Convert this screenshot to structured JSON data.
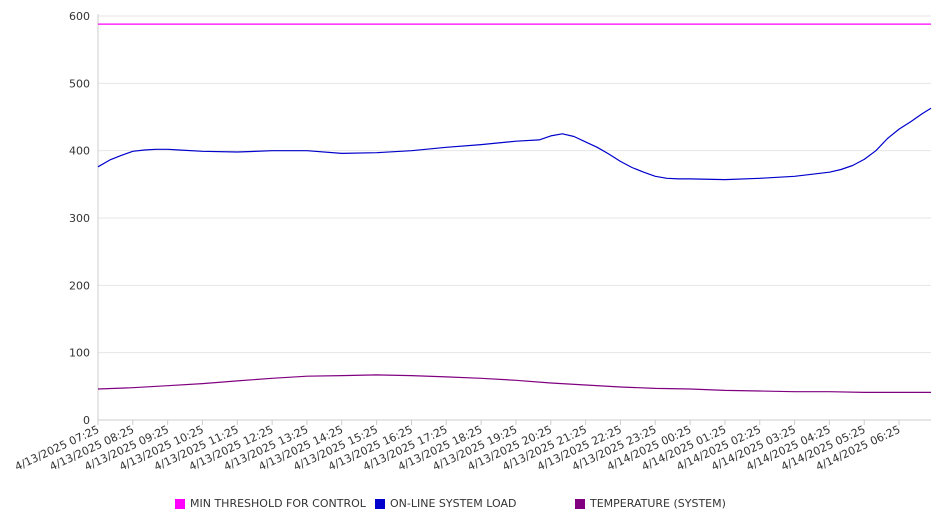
{
  "chart_data": {
    "type": "line",
    "title": "",
    "xlabel": "",
    "ylabel": "",
    "ylim": [
      0,
      600
    ],
    "yticks": [
      0,
      100,
      200,
      300,
      400,
      500,
      600
    ],
    "grid": "horizontal",
    "legend_position": "bottom",
    "x_tick_labels": [
      "4/13/2025 07:25",
      "4/13/2025 08:25",
      "4/13/2025 09:25",
      "4/13/2025 10:25",
      "4/13/2025 11:25",
      "4/13/2025 12:25",
      "4/13/2025 13:25",
      "4/13/2025 14:25",
      "4/13/2025 15:25",
      "4/13/2025 16:25",
      "4/13/2025 17:25",
      "4/13/2025 18:25",
      "4/13/2025 19:25",
      "4/13/2025 20:25",
      "4/13/2025 21:25",
      "4/13/2025 22:25",
      "4/13/2025 23:25",
      "4/14/2025 00:25",
      "4/14/2025 01:25",
      "4/14/2025 02:25",
      "4/14/2025 03:25",
      "4/14/2025 04:25",
      "4/14/2025 05:25",
      "4/14/2025 06:25"
    ],
    "x_start": "4/13/2025 07:25",
    "x_end": "4/14/2025 07:20",
    "sample_interval_minutes": 5,
    "series": [
      {
        "name": "MIN THRESHOLD FOR CONTROL",
        "color": "#ff00ff",
        "x": [
          "4/13/2025 07:25",
          "4/14/2025 07:20"
        ],
        "values": [
          588,
          588
        ]
      },
      {
        "name": "ON-LINE SYSTEM LOAD",
        "color": "#0000cc",
        "x": [
          "4/13/2025 07:25",
          "4/13/2025 07:45",
          "4/13/2025 08:05",
          "4/13/2025 08:25",
          "4/13/2025 08:45",
          "4/13/2025 09:05",
          "4/13/2025 09:25",
          "4/13/2025 09:45",
          "4/13/2025 10:25",
          "4/13/2025 11:25",
          "4/13/2025 12:25",
          "4/13/2025 13:25",
          "4/13/2025 14:25",
          "4/13/2025 15:25",
          "4/13/2025 16:25",
          "4/13/2025 17:25",
          "4/13/2025 18:25",
          "4/13/2025 19:25",
          "4/13/2025 20:05",
          "4/13/2025 20:25",
          "4/13/2025 20:45",
          "4/13/2025 21:05",
          "4/13/2025 21:25",
          "4/13/2025 21:45",
          "4/13/2025 22:05",
          "4/13/2025 22:25",
          "4/13/2025 22:45",
          "4/13/2025 23:05",
          "4/13/2025 23:25",
          "4/13/2025 23:45",
          "4/14/2025 00:05",
          "4/14/2025 00:25",
          "4/14/2025 01:25",
          "4/14/2025 02:25",
          "4/14/2025 03:25",
          "4/14/2025 04:25",
          "4/14/2025 04:45",
          "4/14/2025 05:05",
          "4/14/2025 05:25",
          "4/14/2025 05:45",
          "4/14/2025 06:05",
          "4/14/2025 06:25",
          "4/14/2025 06:45",
          "4/14/2025 07:05",
          "4/14/2025 07:20"
        ],
        "values": [
          376,
          386,
          393,
          399,
          401,
          402,
          402,
          401,
          399,
          398,
          400,
          400,
          396,
          397,
          400,
          405,
          409,
          414,
          416,
          422,
          425,
          421,
          413,
          405,
          395,
          384,
          375,
          368,
          362,
          359,
          358,
          358,
          357,
          359,
          362,
          368,
          372,
          378,
          387,
          400,
          418,
          432,
          443,
          455,
          463
        ]
      },
      {
        "name": "TEMPERATURE (SYSTEM)",
        "color": "#800080",
        "x": [
          "4/13/2025 07:25",
          "4/13/2025 08:25",
          "4/13/2025 09:25",
          "4/13/2025 10:25",
          "4/13/2025 11:25",
          "4/13/2025 12:25",
          "4/13/2025 13:25",
          "4/13/2025 14:25",
          "4/13/2025 15:25",
          "4/13/2025 16:25",
          "4/13/2025 17:25",
          "4/13/2025 18:25",
          "4/13/2025 19:25",
          "4/13/2025 20:25",
          "4/13/2025 21:25",
          "4/13/2025 22:25",
          "4/13/2025 23:25",
          "4/14/2025 00:25",
          "4/14/2025 01:25",
          "4/14/2025 02:25",
          "4/14/2025 03:25",
          "4/14/2025 04:25",
          "4/14/2025 05:25",
          "4/14/2025 06:25",
          "4/14/2025 07:20"
        ],
        "values": [
          46,
          48,
          51,
          54,
          58,
          62,
          65,
          66,
          67,
          66,
          64,
          62,
          59,
          55,
          52,
          49,
          47,
          46,
          44,
          43,
          42,
          42,
          41,
          41,
          41
        ]
      }
    ]
  }
}
